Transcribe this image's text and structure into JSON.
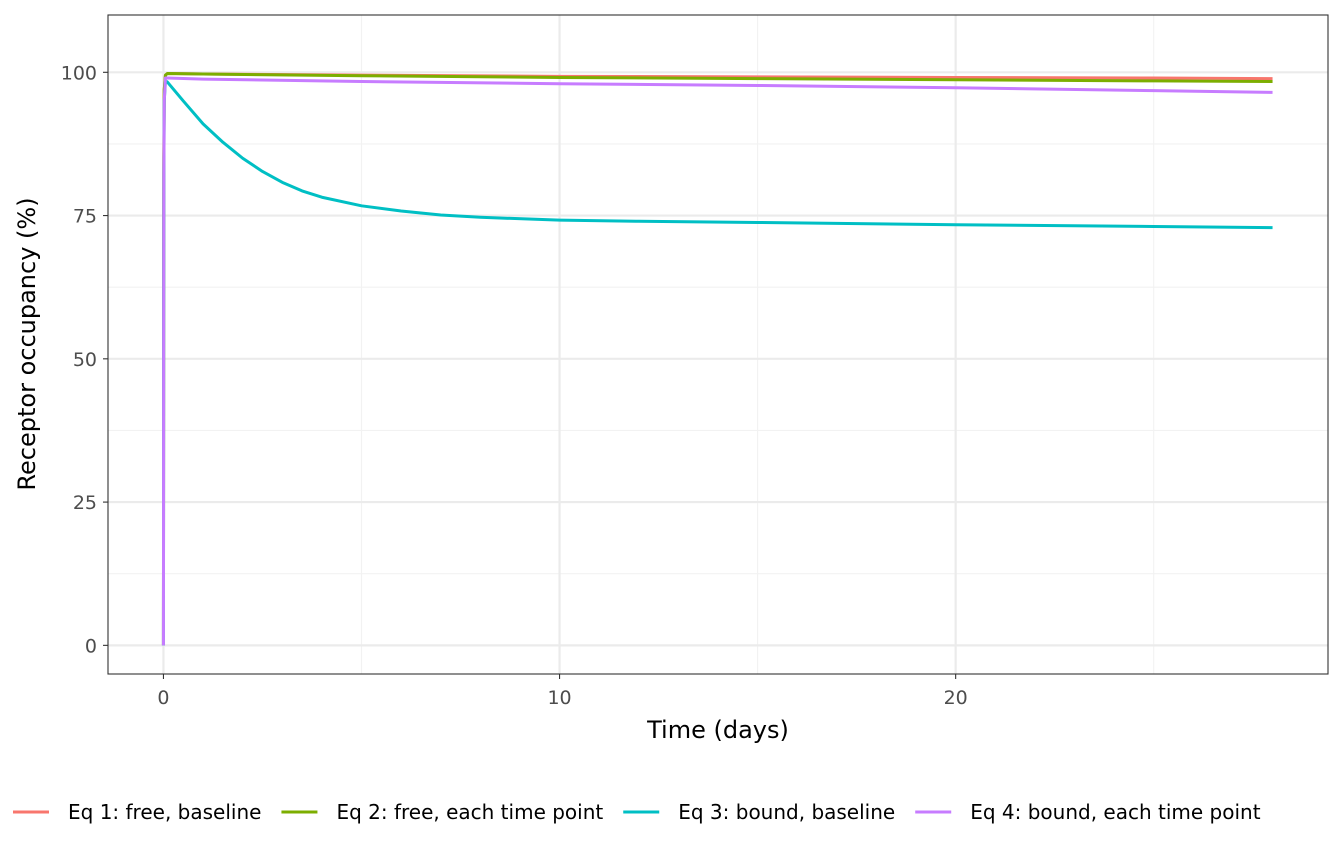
{
  "chart_data": {
    "type": "line",
    "title": "",
    "xlabel": "Time (days)",
    "ylabel": "Receptor occupancy (%)",
    "xlim": [
      -1.4,
      29.4
    ],
    "ylim": [
      -5,
      110
    ],
    "x_ticks": [
      0,
      10,
      20
    ],
    "x_tick_labels": [
      "0",
      "10",
      "20"
    ],
    "x_minor_ticks": [
      5,
      15,
      25
    ],
    "y_ticks": [
      0,
      25,
      50,
      75,
      100
    ],
    "y_tick_labels": [
      "0",
      "25",
      "50",
      "75",
      "100"
    ],
    "y_minor_ticks": [
      12.5,
      37.5,
      62.5,
      87.5
    ],
    "grid": true,
    "legend_position": "bottom",
    "series": [
      {
        "name": "Eq 1: free, baseline",
        "color": "#F8766D",
        "x": [
          0,
          0.005,
          0.01,
          0.02,
          0.05,
          0.1,
          1,
          5,
          10,
          15,
          20,
          25,
          28
        ],
        "y": [
          0,
          60,
          85,
          97,
          99.5,
          99.8,
          99.7,
          99.5,
          99.3,
          99.2,
          99.1,
          99.0,
          98.9
        ]
      },
      {
        "name": "Eq 2: free, each time point",
        "color": "#7CAE00",
        "x": [
          0,
          0.005,
          0.01,
          0.02,
          0.05,
          0.1,
          1,
          5,
          10,
          15,
          20,
          25,
          28
        ],
        "y": [
          0,
          60,
          85,
          97,
          99.5,
          99.8,
          99.7,
          99.4,
          99.1,
          98.9,
          98.7,
          98.5,
          98.4
        ]
      },
      {
        "name": "Eq 3: bound, baseline",
        "color": "#00BFC4",
        "x": [
          0,
          0.005,
          0.01,
          0.02,
          0.05,
          0.1,
          0.5,
          1,
          1.5,
          2,
          2.5,
          3,
          3.5,
          4,
          5,
          6,
          7,
          8,
          10,
          12,
          15,
          20,
          25,
          28
        ],
        "y": [
          0,
          55,
          82,
          95,
          98.5,
          98.3,
          95,
          91,
          87.8,
          85,
          82.7,
          80.8,
          79.3,
          78.2,
          76.7,
          75.8,
          75.1,
          74.7,
          74.2,
          74.0,
          73.8,
          73.4,
          73.1,
          72.9
        ]
      },
      {
        "name": "Eq 4: bound, each time point",
        "color": "#C77CFF",
        "x": [
          0,
          0.005,
          0.01,
          0.02,
          0.05,
          0.1,
          1,
          5,
          10,
          15,
          20,
          25,
          28
        ],
        "y": [
          0,
          55,
          82,
          95,
          99.0,
          99.0,
          98.8,
          98.4,
          98.0,
          97.7,
          97.3,
          96.8,
          96.5
        ]
      }
    ]
  }
}
